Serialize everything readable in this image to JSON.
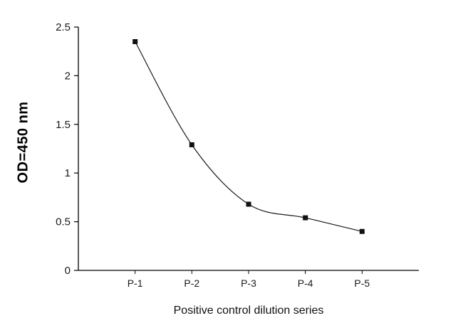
{
  "chart_data": {
    "type": "line",
    "title": "",
    "categories": [
      "P-1",
      "P-2",
      "P-3",
      "P-4",
      "P-5"
    ],
    "values": [
      2.35,
      1.29,
      0.68,
      0.54,
      0.4
    ],
    "xlabel": "Positive control dilution series",
    "ylabel": "OD=450 nm",
    "ylim": [
      0,
      2.5
    ],
    "ytick_values": [
      0,
      0.5,
      1,
      1.5,
      2,
      2.5
    ],
    "ytick_labels": [
      "0",
      "0.5",
      "1",
      "1.5",
      "2",
      "2.5"
    ],
    "grid": false,
    "legend": "none",
    "marker": "square",
    "line_color": "#1a1a1a",
    "marker_color": "#111111",
    "axis_color": "#000000"
  }
}
